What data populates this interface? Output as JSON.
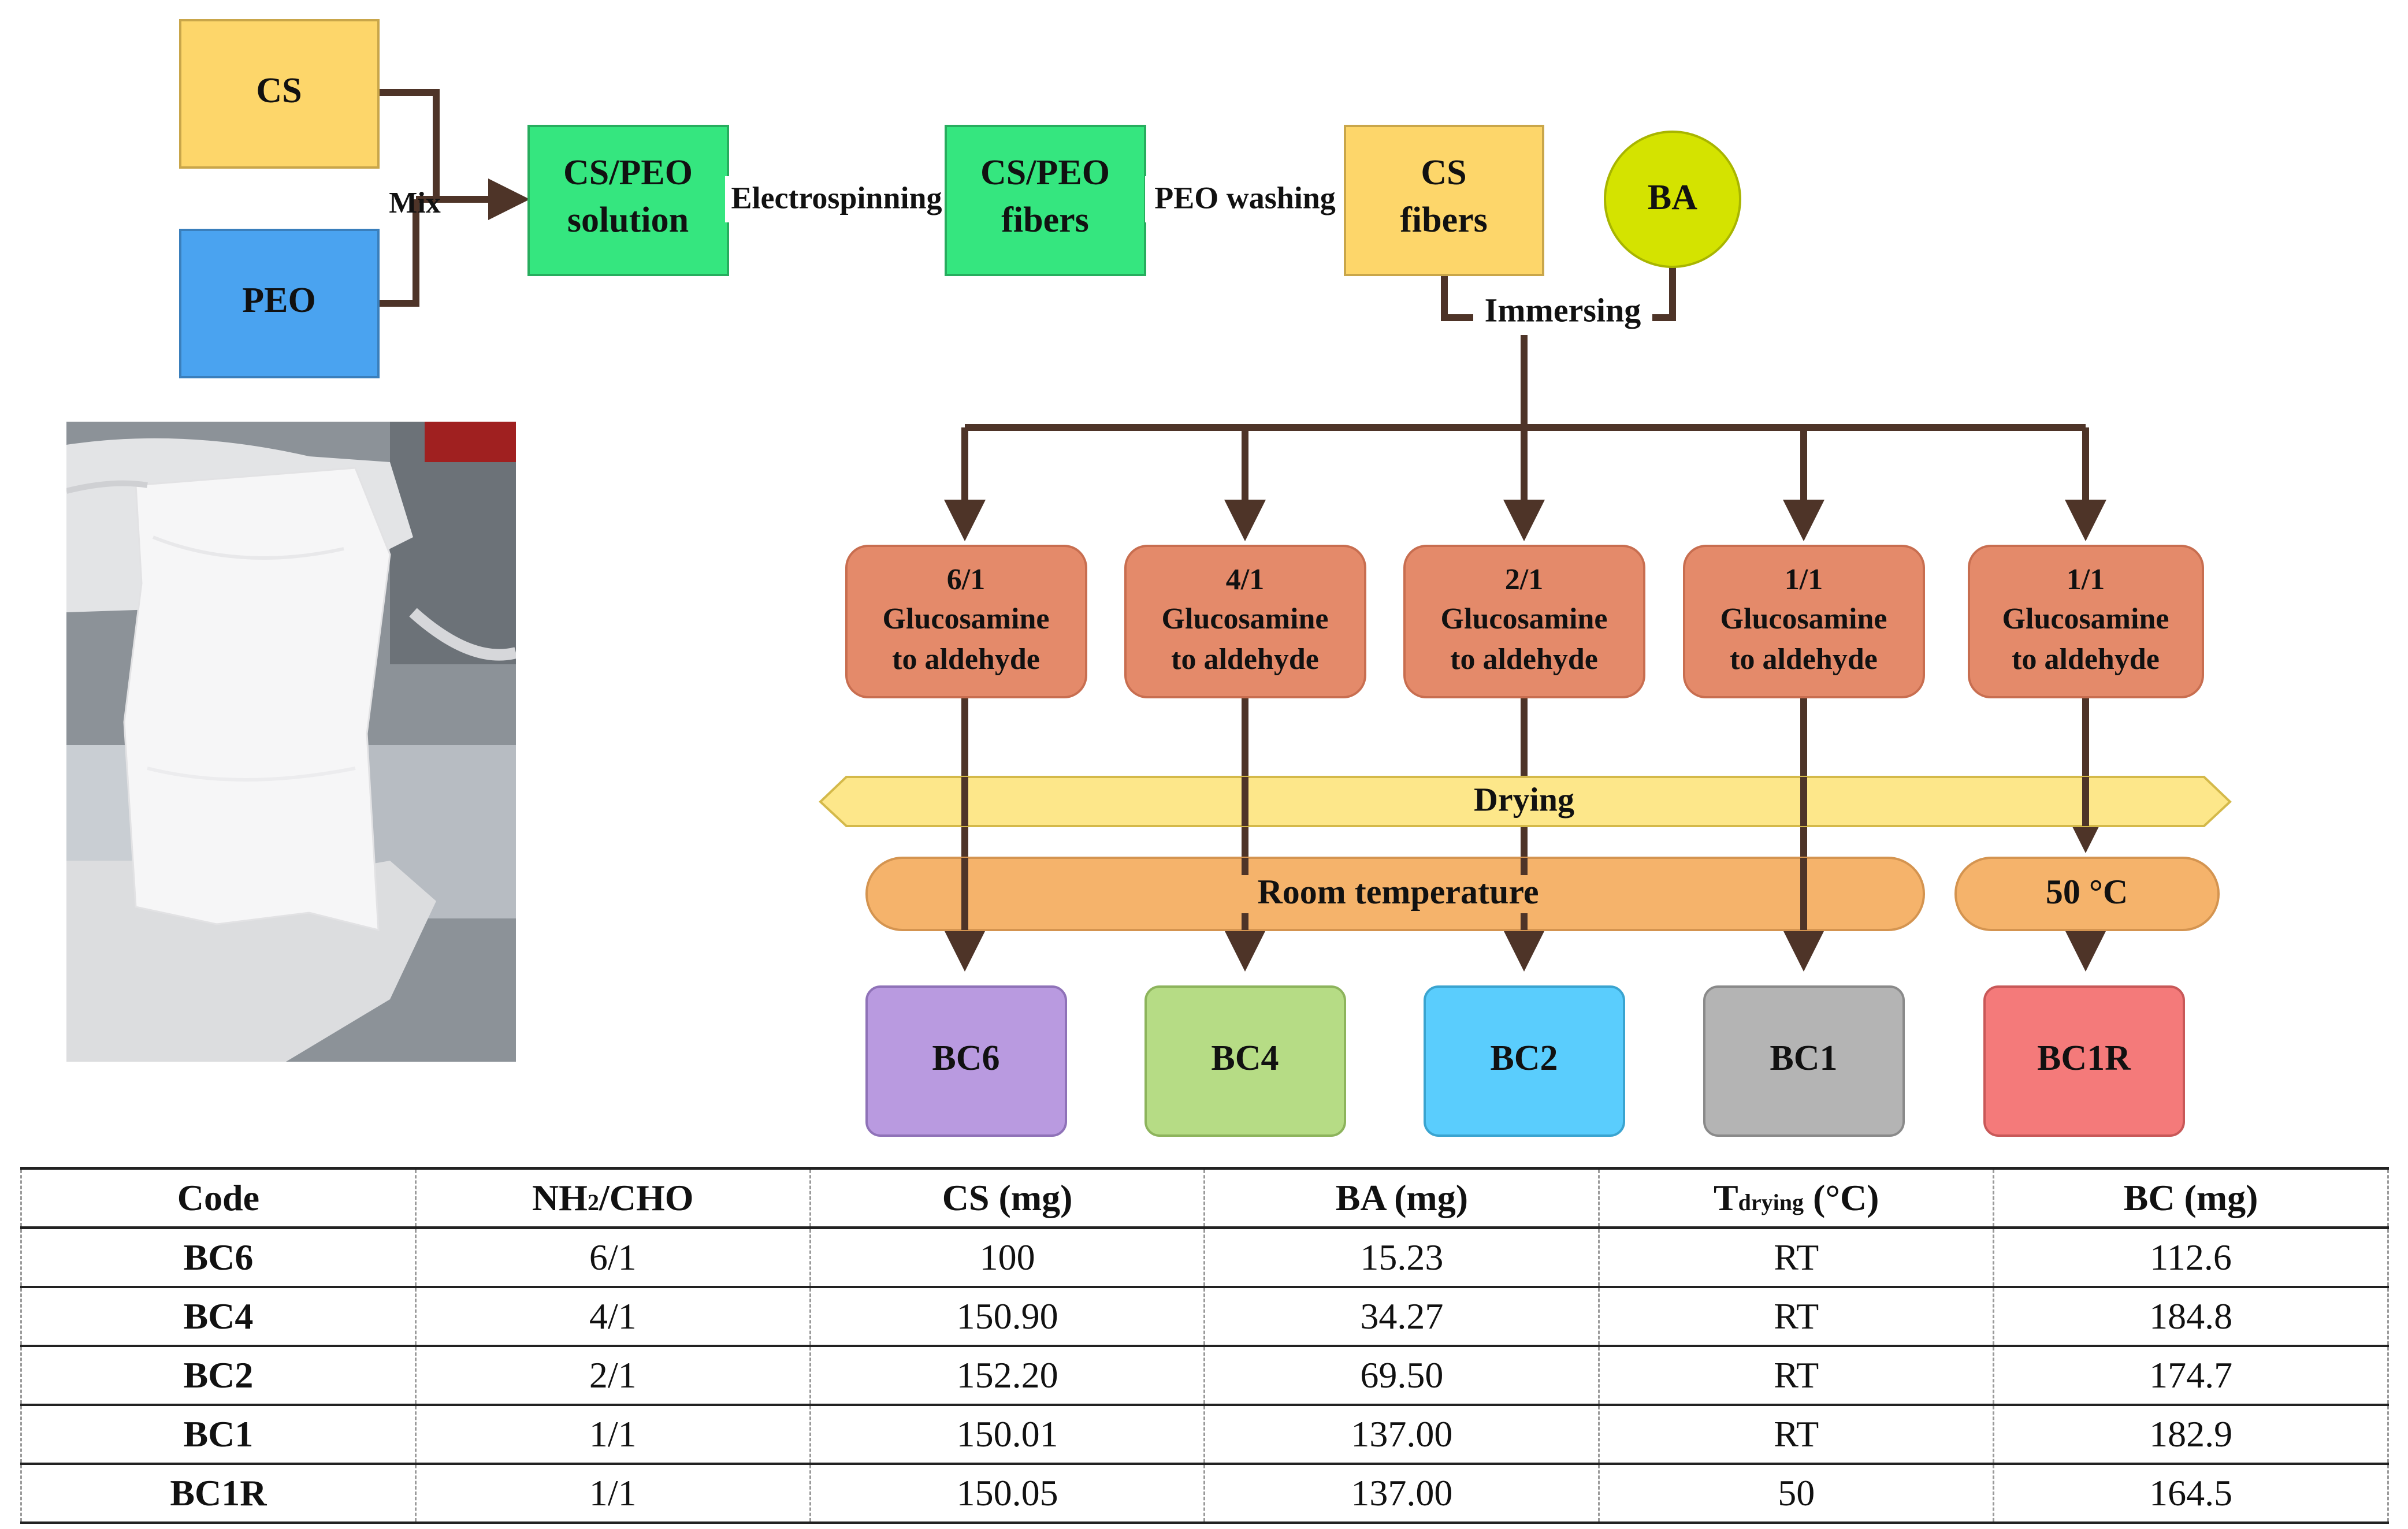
{
  "colors": {
    "arrow": "#4e3428",
    "cs_box": "#fdd66a",
    "peo_box": "#4aa3f0",
    "green_box": "#35e67f",
    "ba_circle": "#d4e300",
    "ratio_box": "#e48a6a",
    "drying_band": "#fde78a",
    "temp_band": "#f5b36b",
    "bc6": "#b99ae0",
    "bc4": "#b6dc85",
    "bc2": "#5acdfd",
    "bc1": "#b4b4b4",
    "bc1r": "#f47a7a"
  },
  "flow": {
    "cs": "CS",
    "peo": "PEO",
    "mix": "Mix",
    "solution_line1": "CS/PEO",
    "solution_line2": "solution",
    "electrospinning": "Electrospinning",
    "fibers_line1": "CS/PEO",
    "fibers_line2": "fibers",
    "peo_washing": "PEO washing",
    "cs_fibers_line1": "CS",
    "cs_fibers_line2": "fibers",
    "ba": "BA",
    "immersing": "Immersing",
    "drying": "Drying",
    "room_temperature": "Room temperature",
    "high_temperature": "50 °C",
    "ratios": [
      {
        "ratio": "6/1",
        "line2": "Glucosamine",
        "line3": "to aldehyde"
      },
      {
        "ratio": "4/1",
        "line2": "Glucosamine",
        "line3": "to aldehyde"
      },
      {
        "ratio": "2/1",
        "line2": "Glucosamine",
        "line3": "to aldehyde"
      },
      {
        "ratio": "1/1",
        "line2": "Glucosamine",
        "line3": "to aldehyde"
      },
      {
        "ratio": "1/1",
        "line2": "Glucosamine",
        "line3": "to aldehyde"
      }
    ],
    "products": [
      "BC6",
      "BC4",
      "BC2",
      "BC1",
      "BC1R"
    ]
  },
  "table": {
    "headers": {
      "code": "Code",
      "ratio_main": "NH",
      "ratio_sub": "2",
      "ratio_rest": "/CHO",
      "cs": "CS (mg)",
      "ba": "BA (mg)",
      "t_main": "T",
      "t_sub": "drying",
      "t_rest": " (°C)",
      "bc": "BC (mg)"
    },
    "rows": [
      {
        "code": "BC6",
        "ratio": "6/1",
        "cs": "100",
        "ba": "15.23",
        "t": "RT",
        "bc": "112.6"
      },
      {
        "code": "BC4",
        "ratio": "4/1",
        "cs": "150.90",
        "ba": "34.27",
        "t": "RT",
        "bc": "184.8"
      },
      {
        "code": "BC2",
        "ratio": "2/1",
        "cs": "152.20",
        "ba": "69.50",
        "t": "RT",
        "bc": "174.7"
      },
      {
        "code": "BC1",
        "ratio": "1/1",
        "cs": "150.01",
        "ba": "137.00",
        "t": "RT",
        "bc": "182.9"
      },
      {
        "code": "BC1R",
        "ratio": "1/1",
        "cs": "150.05",
        "ba": "137.00",
        "t": "50",
        "bc": "164.5"
      }
    ]
  }
}
